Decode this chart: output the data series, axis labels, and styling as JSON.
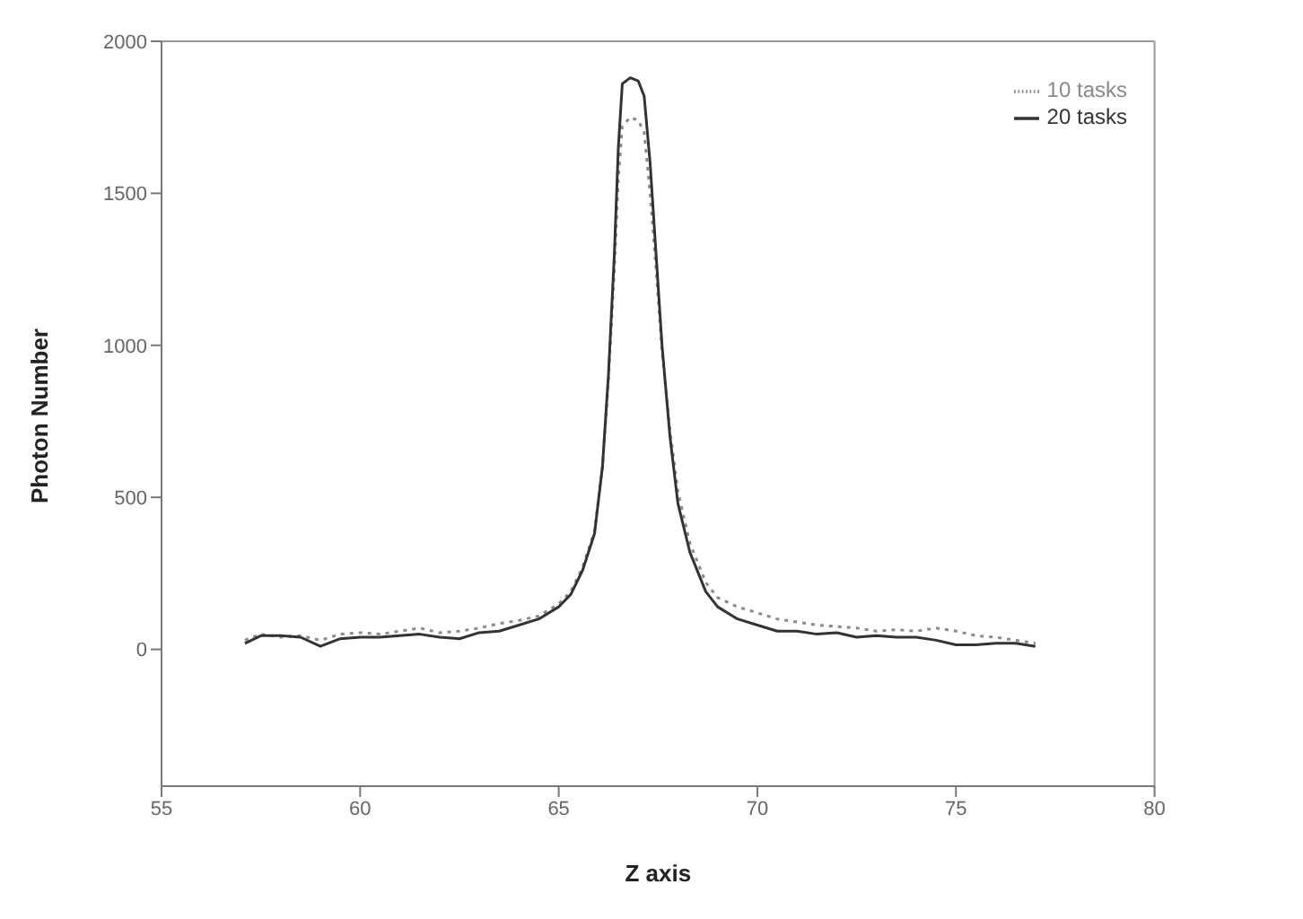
{
  "chart_data": {
    "type": "line",
    "xlabel": "Z axis",
    "ylabel": "Photon Number",
    "xlim": [
      55,
      80
    ],
    "xticks": [
      55,
      60,
      65,
      70,
      75,
      80
    ],
    "ylim": [
      -450,
      2000
    ],
    "yticks": [
      0,
      500,
      1000,
      1500,
      2000
    ],
    "grid": false,
    "legend": "top right",
    "marker": "none",
    "series": [
      {
        "name": "10 tasks",
        "color": "#8a8a8a",
        "line_style": "dotted",
        "x": [
          57.1,
          57.5,
          58,
          58.5,
          59,
          59.5,
          60,
          60.5,
          61,
          61.5,
          62,
          62.5,
          63,
          63.5,
          64,
          64.5,
          65,
          65.3,
          65.6,
          65.9,
          66.1,
          66.25,
          66.4,
          66.5,
          66.6,
          66.8,
          67.0,
          67.15,
          67.3,
          67.45,
          67.6,
          67.8,
          68.0,
          68.3,
          68.7,
          69.0,
          69.5,
          70,
          70.5,
          71,
          71.5,
          72,
          72.5,
          73,
          73.5,
          74,
          74.5,
          75,
          75.5,
          76,
          76.5,
          77
        ],
        "values": [
          30,
          50,
          40,
          45,
          30,
          50,
          55,
          50,
          60,
          70,
          55,
          60,
          70,
          85,
          95,
          110,
          150,
          190,
          270,
          390,
          600,
          880,
          1250,
          1550,
          1720,
          1750,
          1740,
          1700,
          1500,
          1250,
          980,
          720,
          520,
          350,
          220,
          170,
          140,
          120,
          100,
          90,
          80,
          75,
          70,
          60,
          65,
          60,
          70,
          60,
          45,
          40,
          30,
          20
        ]
      },
      {
        "name": "20 tasks",
        "color": "#333333",
        "line_style": "solid",
        "x": [
          57.1,
          57.5,
          58,
          58.5,
          59,
          59.5,
          60,
          60.5,
          61,
          61.5,
          62,
          62.5,
          63,
          63.5,
          64,
          64.5,
          65,
          65.3,
          65.6,
          65.9,
          66.1,
          66.25,
          66.4,
          66.5,
          66.6,
          66.8,
          67.0,
          67.15,
          67.3,
          67.45,
          67.6,
          67.8,
          68.0,
          68.3,
          68.7,
          69.0,
          69.5,
          70,
          70.5,
          71,
          71.5,
          72,
          72.5,
          73,
          73.5,
          74,
          74.5,
          75,
          75.5,
          76,
          76.5,
          77
        ],
        "values": [
          20,
          45,
          45,
          40,
          10,
          35,
          40,
          40,
          45,
          50,
          40,
          35,
          55,
          60,
          80,
          100,
          140,
          180,
          260,
          380,
          600,
          900,
          1300,
          1650,
          1860,
          1880,
          1870,
          1820,
          1600,
          1300,
          1000,
          700,
          480,
          320,
          190,
          140,
          100,
          80,
          60,
          60,
          50,
          55,
          40,
          45,
          40,
          40,
          30,
          15,
          15,
          20,
          20,
          10
        ]
      }
    ]
  }
}
